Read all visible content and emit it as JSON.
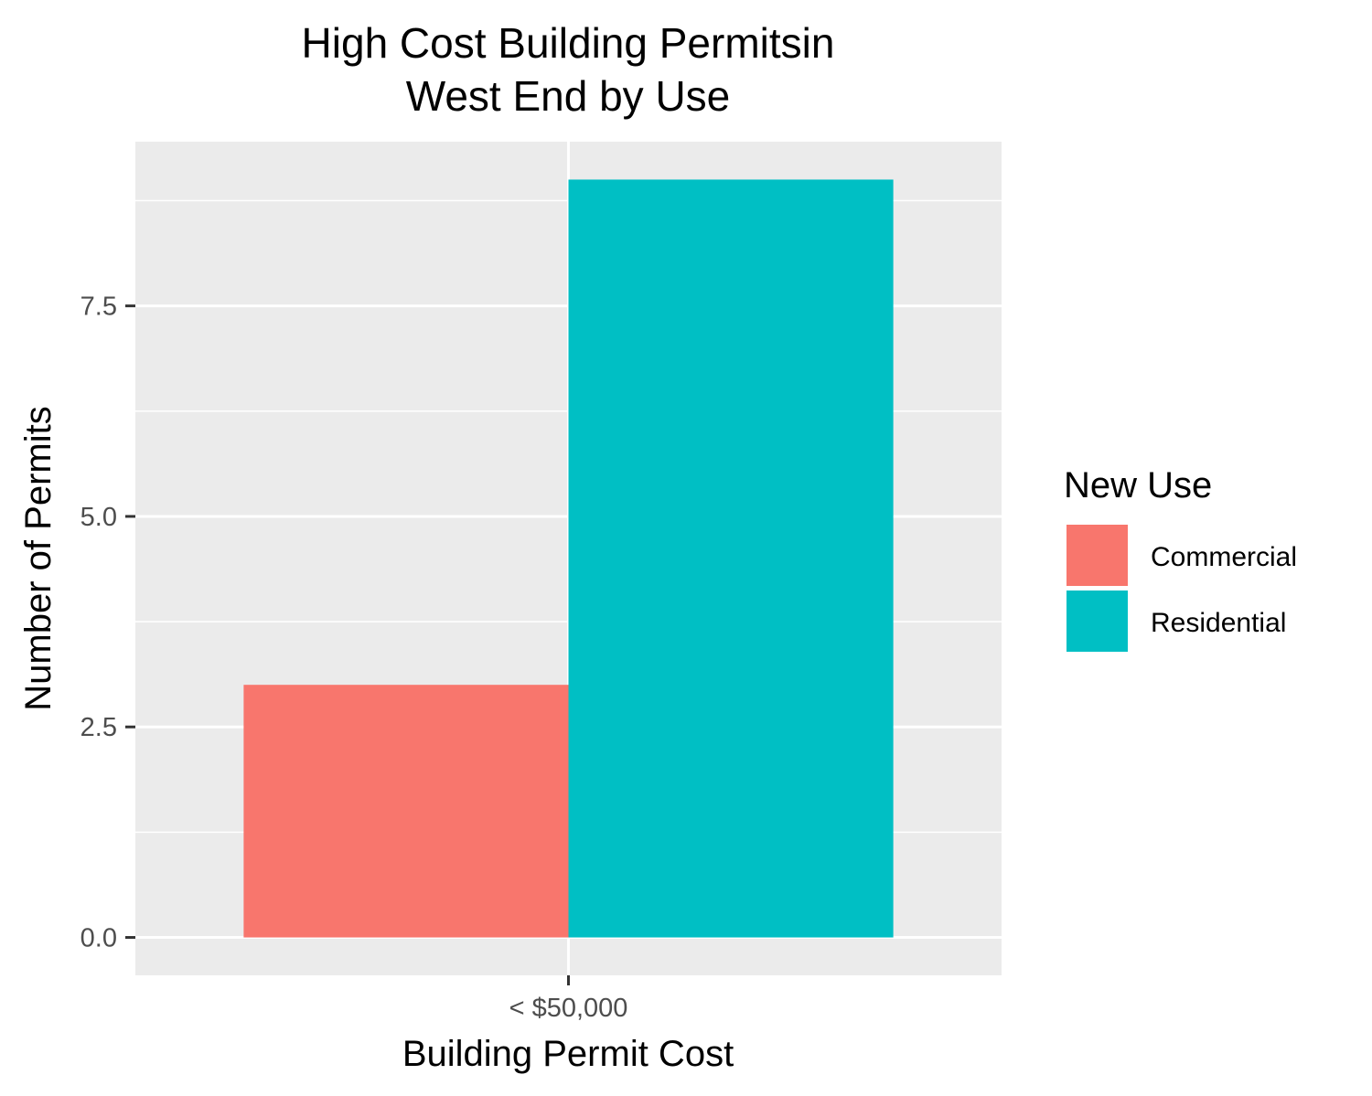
{
  "chart_data": {
    "type": "bar",
    "title": [
      "High Cost Building Permitsin",
      "West End by Use"
    ],
    "xlabel": "Building Permit Cost",
    "ylabel": "Number of Permits",
    "categories": [
      "< $50,000"
    ],
    "series": [
      {
        "name": "Commercial",
        "values": [
          3
        ],
        "color": "#F8766D"
      },
      {
        "name": "Residential",
        "values": [
          9
        ],
        "color": "#00BFC4"
      }
    ],
    "ylim": [
      -0.45,
      9.45
    ],
    "y_ticks": [
      0.0,
      2.5,
      5.0,
      7.5
    ],
    "y_tick_labels": [
      "0.0",
      "2.5",
      "5.0",
      "7.5"
    ],
    "legend": {
      "title": "New Use",
      "position": "right"
    },
    "grid": true,
    "panel_background": "#EBEBEB"
  }
}
